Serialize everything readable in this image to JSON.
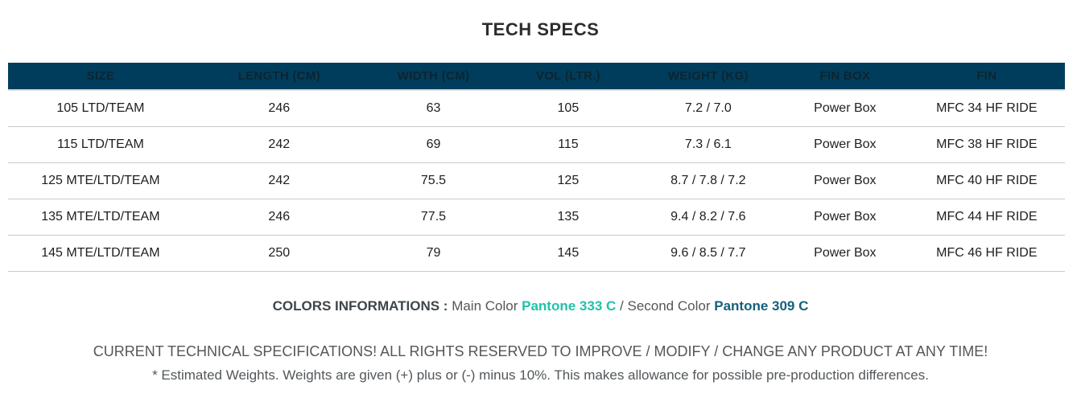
{
  "page": {
    "title": "TECH SPECS"
  },
  "table": {
    "headers": [
      "SIZE",
      "LENGTH (CM)",
      "WIDTH (CM)",
      "VOL (LTR.)",
      "WEIGHT (KG)",
      "FIN BOX",
      "FIN"
    ],
    "rows": [
      [
        "105 LTD/TEAM",
        "246",
        "63",
        "105",
        "7.2 / 7.0",
        "Power Box",
        "MFC 34 HF RIDE"
      ],
      [
        "115 LTD/TEAM",
        "242",
        "69",
        "115",
        "7.3 / 6.1",
        "Power Box",
        "MFC 38 HF RIDE"
      ],
      [
        "125 MTE/LTD/TEAM",
        "242",
        "75.5",
        "125",
        "8.7 / 7.8 / 7.2",
        "Power Box",
        "MFC 40 HF RIDE"
      ],
      [
        "135 MTE/LTD/TEAM",
        "246",
        "77.5",
        "135",
        "9.4 / 8.2 / 7.6",
        "Power Box",
        "MFC 44 HF RIDE"
      ],
      [
        "145 MTE/LTD/TEAM",
        "250",
        "79",
        "145",
        "9.6 / 8.5 / 7.7",
        "Power Box",
        "MFC 46 HF RIDE"
      ]
    ]
  },
  "colors_info": {
    "label": "COLORS INFORMATIONS :",
    "main_color_label": "Main Color",
    "main_color_value": "Pantone 333 C",
    "separator": "/",
    "second_color_label": "Second Color",
    "second_color_value": "Pantone 309 C",
    "main_color_hex": "#1fc3a9",
    "second_color_hex": "#16607b"
  },
  "footer": {
    "disclaimer": "CURRENT TECHNICAL SPECIFICATIONS! ALL RIGHTS RESERVED TO IMPROVE / MODIFY / CHANGE ANY PRODUCT AT ANY TIME!",
    "weights_note": "* Estimated Weights. Weights are given (+) plus or (-) minus 10%. This makes allowance for possible pre-production differences."
  },
  "theme": {
    "header_bg": "#003d5c",
    "header_text": "#0d2430",
    "row_border": "#c9c9c9"
  }
}
